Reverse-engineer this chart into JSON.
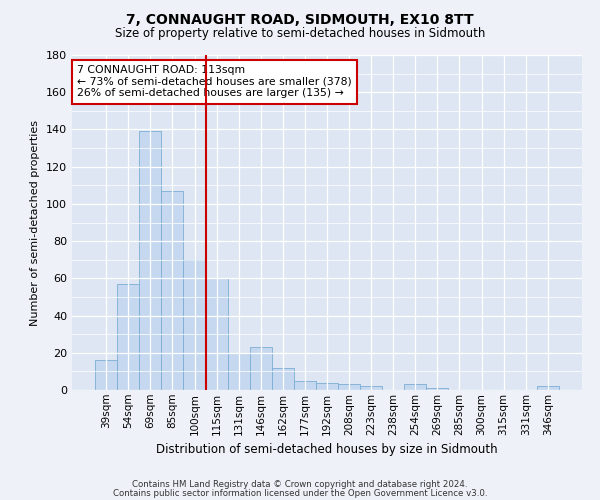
{
  "title1": "7, CONNAUGHT ROAD, SIDMOUTH, EX10 8TT",
  "title2": "Size of property relative to semi-detached houses in Sidmouth",
  "xlabel": "Distribution of semi-detached houses by size in Sidmouth",
  "ylabel": "Number of semi-detached properties",
  "categories": [
    "39sqm",
    "54sqm",
    "69sqm",
    "85sqm",
    "100sqm",
    "115sqm",
    "131sqm",
    "146sqm",
    "162sqm",
    "177sqm",
    "192sqm",
    "208sqm",
    "223sqm",
    "238sqm",
    "254sqm",
    "269sqm",
    "285sqm",
    "300sqm",
    "315sqm",
    "331sqm",
    "346sqm"
  ],
  "values": [
    16,
    57,
    139,
    107,
    70,
    60,
    20,
    23,
    12,
    5,
    4,
    3,
    2,
    0,
    3,
    1,
    0,
    0,
    0,
    0,
    2
  ],
  "bar_color": "#c5d8f0",
  "bar_edge_color": "#7aadd4",
  "vline_color": "#cc0000",
  "annotation_title": "7 CONNAUGHT ROAD: 113sqm",
  "annotation_line1": "← 73% of semi-detached houses are smaller (378)",
  "annotation_line2": "26% of semi-detached houses are larger (135) →",
  "annotation_box_color": "#ffffff",
  "annotation_edge_color": "#cc0000",
  "ylim": [
    0,
    180
  ],
  "yticks": [
    0,
    20,
    40,
    60,
    80,
    100,
    120,
    140,
    160,
    180
  ],
  "footer1": "Contains HM Land Registry data © Crown copyright and database right 2024.",
  "footer2": "Contains public sector information licensed under the Open Government Licence v3.0.",
  "bg_color": "#eef2f8",
  "plot_bg_color": "#dde6f2"
}
